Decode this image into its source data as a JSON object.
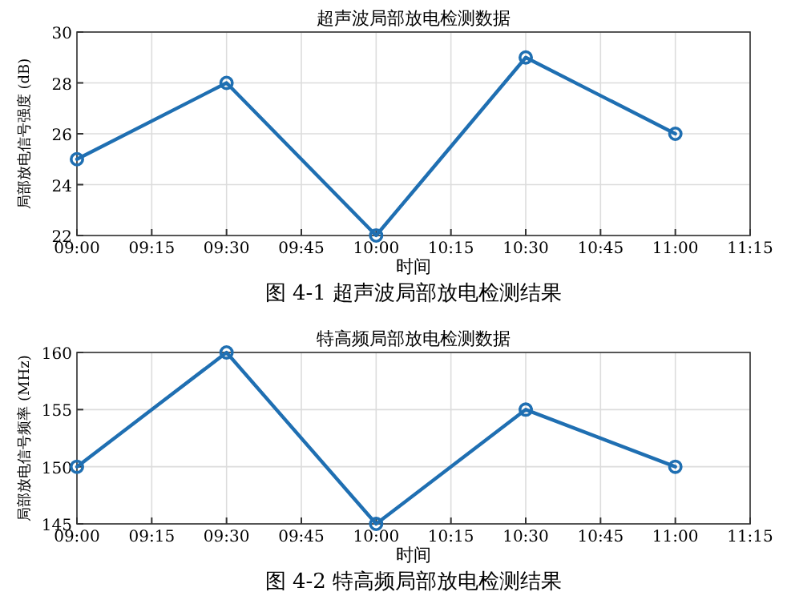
{
  "chart_data": [
    {
      "type": "line",
      "title": "超声波局部放电检测数据",
      "xlabel": "时间",
      "ylabel": "局部放电信号强度 (dB)",
      "annotations": [
        "图 4-1 超声波局部放电检测结果"
      ],
      "x": [
        9,
        9.5,
        10,
        10.5,
        11
      ],
      "series": [
        {
          "color": "#1f6fb2",
          "values": [
            25,
            28,
            22,
            29,
            26
          ]
        }
      ],
      "xlim": [
        9,
        11.25
      ],
      "xticks": [
        {
          "value": 9,
          "label": "09:00"
        },
        {
          "value": 9.25,
          "label": "09:15"
        },
        {
          "value": 9.5,
          "label": "09:30"
        },
        {
          "value": 9.75,
          "label": "09:45"
        },
        {
          "value": 10,
          "label": "10:00"
        },
        {
          "value": 10.25,
          "label": "10:15"
        },
        {
          "value": 10.5,
          "label": "10:30"
        },
        {
          "value": 10.75,
          "label": "10:45"
        },
        {
          "value": 11,
          "label": "11:00"
        },
        {
          "value": 11.25,
          "label": "11:15"
        }
      ],
      "ylim": [
        22,
        30
      ],
      "yticks": [
        22,
        24,
        26,
        28,
        30
      ],
      "grid": true,
      "marker": "circle",
      "line_style": "solid"
    },
    {
      "type": "line",
      "title": "特高频局部放电检测数据",
      "xlabel": "时间",
      "ylabel": "局部放电信号频率 (MHz)",
      "annotations": [
        "图 4-2 特高频局部放电检测结果"
      ],
      "x": [
        9,
        9.5,
        10,
        10.5,
        11
      ],
      "series": [
        {
          "color": "#1f6fb2",
          "values": [
            150,
            160,
            145,
            155,
            150
          ]
        }
      ],
      "xlim": [
        9,
        11.25
      ],
      "xticks": [
        {
          "value": 9,
          "label": "09:00"
        },
        {
          "value": 9.25,
          "label": "09:15"
        },
        {
          "value": 9.5,
          "label": "09:30"
        },
        {
          "value": 9.75,
          "label": "09:45"
        },
        {
          "value": 10,
          "label": "10:00"
        },
        {
          "value": 10.25,
          "label": "10:15"
        },
        {
          "value": 10.5,
          "label": "10:30"
        },
        {
          "value": 10.75,
          "label": "10:45"
        },
        {
          "value": 11,
          "label": "11:00"
        },
        {
          "value": 11.25,
          "label": "11:15"
        }
      ],
      "ylim": [
        145,
        160
      ],
      "yticks": [
        145,
        150,
        155,
        160
      ],
      "grid": true,
      "marker": "circle",
      "line_style": "solid"
    }
  ]
}
